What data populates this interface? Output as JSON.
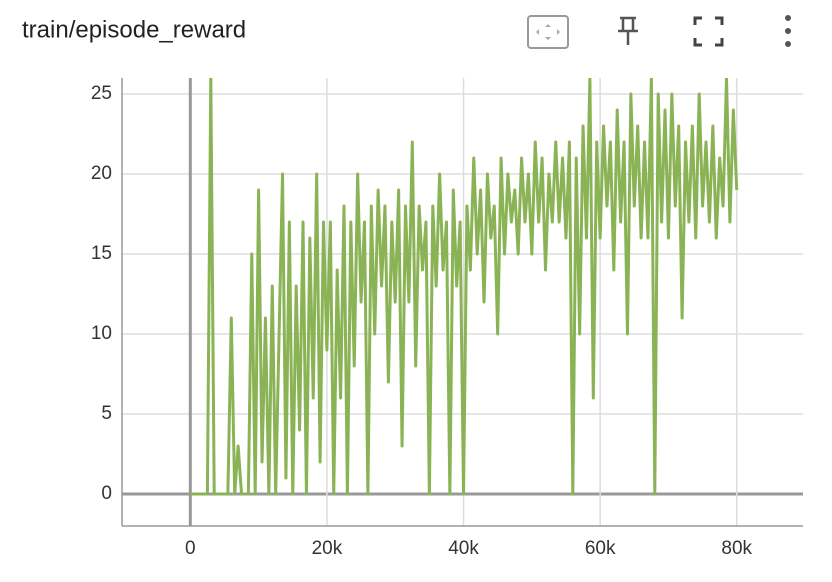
{
  "chart_data": {
    "type": "line",
    "title": "train/episode_reward",
    "x": [
      0,
      500,
      1000,
      1500,
      2000,
      2500,
      3000,
      3500,
      4000,
      4500,
      5000,
      5500,
      6000,
      6500,
      7000,
      7500,
      8000,
      8500,
      9000,
      9500,
      10000,
      10500,
      11000,
      11500,
      12000,
      12500,
      13000,
      13500,
      14000,
      14500,
      15000,
      15500,
      16000,
      16500,
      17000,
      17500,
      18000,
      18500,
      19000,
      19500,
      20000,
      20500,
      21000,
      21500,
      22000,
      22500,
      23000,
      23500,
      24000,
      24500,
      25000,
      25500,
      26000,
      26500,
      27000,
      27500,
      28000,
      28500,
      29000,
      29500,
      30000,
      30500,
      31000,
      31500,
      32000,
      32500,
      33000,
      33500,
      34000,
      34500,
      35000,
      35500,
      36000,
      36500,
      37000,
      37500,
      38000,
      38500,
      39000,
      39500,
      40000,
      40500,
      41000,
      41500,
      42000,
      42500,
      43000,
      43500,
      44000,
      44500,
      45000,
      45500,
      46000,
      46500,
      47000,
      47500,
      48000,
      48500,
      49000,
      49500,
      50000,
      50500,
      51000,
      51500,
      52000,
      52500,
      53000,
      53500,
      54000,
      54500,
      55000,
      55500,
      56000,
      56500,
      57000,
      57500,
      58000,
      58500,
      59000,
      59500,
      60000,
      60500,
      61000,
      61500,
      62000,
      62500,
      63000,
      63500,
      64000,
      64500,
      65000,
      65500,
      66000,
      66500,
      67000,
      67500,
      68000,
      68500,
      69000,
      69500,
      70000,
      70500,
      71000,
      71500,
      72000,
      72500,
      73000,
      73500,
      74000,
      74500,
      75000,
      75500,
      76000,
      76500,
      77000,
      77500,
      78000,
      78500,
      79000,
      79500,
      80000
    ],
    "series": [
      {
        "name": "train/episode_reward",
        "color": "#8ab355",
        "values": [
          0,
          0,
          0,
          0,
          0,
          0,
          26,
          0,
          0,
          0,
          0,
          0,
          11,
          0,
          3,
          0,
          0,
          0,
          15,
          0,
          19,
          2,
          11,
          0,
          13,
          0,
          10,
          20,
          1,
          17,
          0,
          13,
          4,
          17,
          0,
          16,
          6,
          20,
          2,
          17,
          9,
          17,
          0,
          14,
          6,
          18,
          0,
          17,
          8,
          20,
          12,
          17,
          0,
          18,
          10,
          19,
          13,
          18,
          7,
          17,
          12,
          19,
          3,
          18,
          12,
          22,
          8,
          18,
          14,
          17,
          0,
          18,
          13,
          20,
          14,
          17,
          0,
          19,
          13,
          17,
          0,
          18,
          14,
          21,
          15,
          19,
          12,
          20,
          16,
          18,
          10,
          21,
          15,
          20,
          17,
          19,
          15,
          21,
          17,
          20,
          15,
          22,
          17,
          21,
          14,
          20,
          17,
          22,
          17,
          21,
          16,
          22,
          0,
          21,
          10,
          23,
          16,
          26,
          6,
          22,
          16,
          23,
          18,
          22,
          14,
          24,
          17,
          22,
          10,
          25,
          18,
          23,
          16,
          22,
          16,
          26,
          0,
          25,
          17,
          24,
          16,
          25,
          18,
          23,
          11,
          22,
          17,
          23,
          16,
          25,
          18,
          22,
          17,
          23,
          16,
          21,
          18,
          26,
          17,
          24,
          19
        ]
      }
    ],
    "xlim": [
      -10000,
      89700
    ],
    "ylim": [
      -2,
      26
    ],
    "xticks": [
      0,
      {
        "value": 20000,
        "label": "20k"
      },
      {
        "value": 40000,
        "label": "40k"
      },
      {
        "value": 60000,
        "label": "60k"
      },
      {
        "value": 80000,
        "label": "80k"
      }
    ],
    "yticks": [
      0,
      5,
      10,
      15,
      20,
      25
    ],
    "grid": true
  }
}
